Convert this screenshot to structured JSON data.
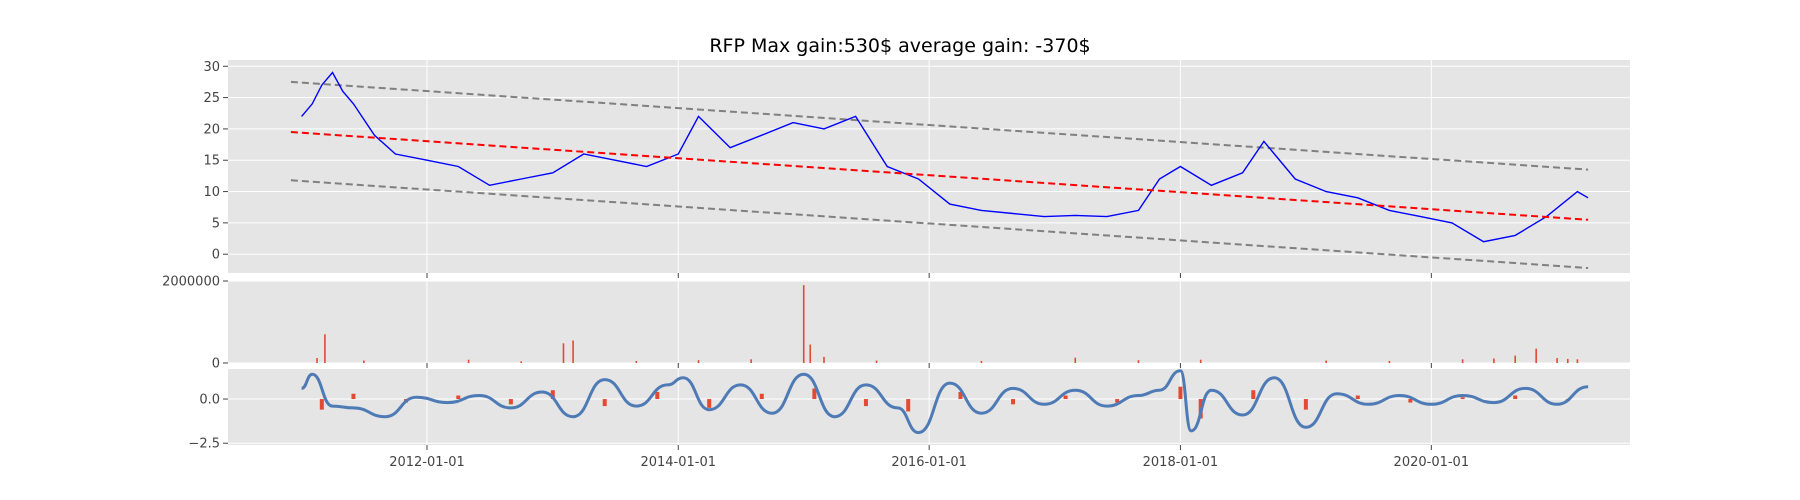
{
  "title": "RFP Max gain:530$  average gain: -370$",
  "colors": {
    "price": "#0000ff",
    "trend": "#ff0000",
    "band": "#808080",
    "volume": "#e24a33",
    "oscillator": "#4e7bb5",
    "oscillator_bars": "#e24a33",
    "panel_bg": "#e5e5e5",
    "grid": "#ffffff"
  },
  "chart_data": [
    {
      "type": "line",
      "name": "price",
      "x_dates": [
        "2011-01-01",
        "2011-02-01",
        "2011-03-01",
        "2011-04-01",
        "2011-05-01",
        "2011-06-01",
        "2011-08-01",
        "2011-10-01",
        "2012-01-01",
        "2012-04-01",
        "2012-07-01",
        "2012-10-01",
        "2013-01-01",
        "2013-04-01",
        "2013-07-01",
        "2013-10-01",
        "2014-01-01",
        "2014-03-01",
        "2014-06-01",
        "2014-09-01",
        "2014-12-01",
        "2015-03-01",
        "2015-06-01",
        "2015-09-01",
        "2015-12-01",
        "2016-03-01",
        "2016-06-01",
        "2016-09-01",
        "2016-12-01",
        "2017-03-01",
        "2017-06-01",
        "2017-09-01",
        "2017-11-01",
        "2018-01-01",
        "2018-04-01",
        "2018-07-01",
        "2018-09-01",
        "2018-12-01",
        "2019-03-01",
        "2019-06-01",
        "2019-09-01",
        "2019-12-01",
        "2020-03-01",
        "2020-06-01",
        "2020-09-01",
        "2020-12-01",
        "2021-03-01",
        "2021-04-01"
      ],
      "values": [
        22,
        24,
        27,
        29,
        26,
        24,
        19,
        16,
        15,
        14,
        11,
        12,
        13,
        16,
        15,
        14,
        16,
        22,
        17,
        19,
        21,
        20,
        22,
        14,
        12,
        8,
        7,
        6.5,
        6,
        6.2,
        6,
        7,
        12,
        14,
        11,
        13,
        18,
        12,
        10,
        9,
        7,
        6,
        5,
        2,
        3,
        6,
        10,
        9
      ],
      "ylim": [
        -3,
        31
      ],
      "yticks": [
        0,
        5,
        10,
        15,
        20,
        25,
        30
      ]
    },
    {
      "type": "line",
      "name": "trend",
      "x_dates": [
        "2010-12-01",
        "2021-04-01"
      ],
      "values": [
        19.5,
        5.5
      ]
    },
    {
      "type": "line",
      "name": "upper band",
      "x_dates": [
        "2010-12-01",
        "2021-04-01"
      ],
      "values": [
        27.5,
        13.5
      ]
    },
    {
      "type": "line",
      "name": "lower band",
      "x_dates": [
        "2010-12-01",
        "2021-04-01"
      ],
      "values": [
        11.8,
        -2.2
      ]
    },
    {
      "type": "bar",
      "name": "volume",
      "x_dates": [
        "2011-02-15",
        "2011-03-10",
        "2011-07-01",
        "2012-05-01",
        "2012-10-01",
        "2013-02-01",
        "2013-03-01",
        "2013-09-01",
        "2014-03-01",
        "2014-08-01",
        "2015-01-01",
        "2015-01-20",
        "2015-03-01",
        "2015-08-01",
        "2016-06-01",
        "2017-03-01",
        "2017-09-01",
        "2018-03-01",
        "2019-03-01",
        "2019-09-01",
        "2020-04-01",
        "2020-07-01",
        "2020-09-01",
        "2020-11-01",
        "2021-01-01",
        "2021-02-01",
        "2021-03-01"
      ],
      "values": [
        120000,
        700000,
        60000,
        80000,
        40000,
        480000,
        550000,
        50000,
        70000,
        90000,
        1900000,
        450000,
        150000,
        60000,
        50000,
        130000,
        70000,
        80000,
        60000,
        50000,
        90000,
        110000,
        180000,
        350000,
        120000,
        100000,
        90000
      ],
      "ylim": [
        0,
        2000000
      ],
      "yticks": [
        0,
        2000000
      ]
    },
    {
      "type": "line",
      "name": "oscillator",
      "x_dates": [
        "2011-01-01",
        "2011-02-01",
        "2011-04-01",
        "2011-06-01",
        "2011-09-01",
        "2011-12-01",
        "2012-03-01",
        "2012-06-01",
        "2012-09-01",
        "2012-12-01",
        "2013-03-01",
        "2013-06-01",
        "2013-09-01",
        "2013-12-01",
        "2014-01-15",
        "2014-04-01",
        "2014-07-01",
        "2014-10-01",
        "2015-01-01",
        "2015-04-01",
        "2015-07-01",
        "2015-10-01",
        "2015-12-01",
        "2016-03-01",
        "2016-06-01",
        "2016-09-01",
        "2016-12-01",
        "2017-03-01",
        "2017-06-01",
        "2017-09-01",
        "2017-11-01",
        "2018-01-01",
        "2018-02-01",
        "2018-04-01",
        "2018-07-01",
        "2018-10-01",
        "2019-01-01",
        "2019-04-01",
        "2019-07-01",
        "2019-10-01",
        "2020-01-01",
        "2020-04-01",
        "2020-07-01",
        "2020-10-01",
        "2021-01-01",
        "2021-04-01"
      ],
      "values": [
        0.6,
        1.4,
        -0.4,
        -0.5,
        -1.0,
        0.1,
        -0.2,
        0.2,
        -0.5,
        0.4,
        -1.0,
        1.1,
        -0.4,
        0.8,
        1.2,
        -0.6,
        0.8,
        -0.8,
        1.4,
        -1.0,
        0.8,
        -0.5,
        -1.9,
        0.9,
        -0.8,
        0.6,
        -0.3,
        0.5,
        -0.4,
        0.2,
        0.5,
        1.6,
        -1.8,
        0.5,
        -0.9,
        1.2,
        -1.6,
        0.3,
        -0.3,
        0.2,
        -0.3,
        0.2,
        -0.2,
        0.6,
        -0.3,
        0.7
      ],
      "ylim": [
        -2.6,
        1.7
      ],
      "yticks": [
        -2.5,
        0.0
      ]
    },
    {
      "type": "bar",
      "name": "oscillator bars",
      "x_dates": [
        "2011-03-01",
        "2011-06-01",
        "2011-11-01",
        "2012-04-01",
        "2012-09-01",
        "2013-01-01",
        "2013-06-01",
        "2013-11-01",
        "2014-04-01",
        "2014-09-01",
        "2015-02-01",
        "2015-07-01",
        "2015-11-01",
        "2016-04-01",
        "2016-09-01",
        "2017-02-01",
        "2017-07-01",
        "2018-01-01",
        "2018-03-01",
        "2018-08-01",
        "2019-01-01",
        "2019-06-01",
        "2019-11-01",
        "2020-04-01",
        "2020-09-01",
        "2021-02-01"
      ],
      "values": [
        -0.6,
        0.3,
        -0.2,
        0.2,
        -0.3,
        0.5,
        -0.4,
        0.4,
        -0.5,
        0.3,
        0.6,
        -0.4,
        -0.7,
        0.4,
        -0.3,
        0.2,
        -0.2,
        0.7,
        -1.1,
        0.5,
        -0.6,
        0.2,
        -0.2,
        0.1,
        0.2,
        -0.1
      ]
    },
    {
      "type": "axis",
      "name": "shared x axis",
      "xlim": [
        "2010-06-01",
        "2021-08-01"
      ],
      "xticks": [
        "2012-01-01",
        "2014-01-01",
        "2016-01-01",
        "2018-01-01",
        "2020-01-01"
      ]
    }
  ]
}
